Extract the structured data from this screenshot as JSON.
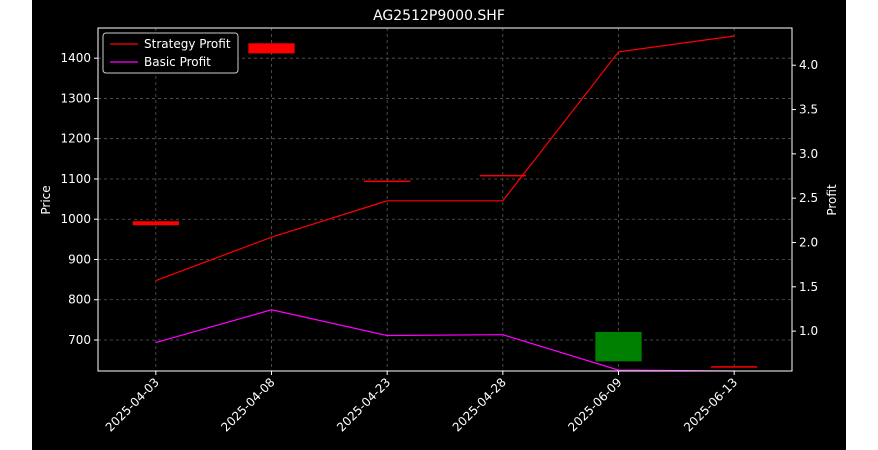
{
  "chart_data": {
    "type": "line",
    "title": "AG2512P9000.SHF",
    "xlabel": "",
    "ylabel_left": "Price",
    "ylabel_right": "Profit",
    "categories": [
      "2025-04-03",
      "2025-04-08",
      "2025-04-23",
      "2025-04-28",
      "2025-06-09",
      "2025-06-13"
    ],
    "y_left": {
      "range": [
        623,
        1475
      ],
      "ticks": [
        700,
        800,
        900,
        1000,
        1100,
        1200,
        1300,
        1400
      ]
    },
    "y_right": {
      "range": [
        0.55,
        4.42
      ],
      "ticks": [
        "1.0",
        "1.5",
        "2.0",
        "2.5",
        "3.0",
        "3.5",
        "4.0"
      ]
    },
    "grid": true,
    "legend_position": "top-left",
    "series": [
      {
        "name": "Strategy Profit",
        "axis": "right",
        "color": "#ff0000",
        "values": [
          1.57,
          2.06,
          2.47,
          2.47,
          4.15,
          4.33
        ]
      },
      {
        "name": "Basic Profit",
        "axis": "right",
        "color": "#ff00ff",
        "values": [
          0.87,
          1.24,
          0.95,
          0.96,
          0.56,
          0.55
        ]
      }
    ],
    "candles": [
      {
        "category": "2025-04-03",
        "open": 995,
        "close": 985,
        "color": "#ff0000"
      },
      {
        "category": "2025-04-08",
        "open": 1437,
        "close": 1412,
        "color": "#ff0000"
      },
      {
        "category": "2025-04-23",
        "open": 1096,
        "close": 1095,
        "color": "#ff0000"
      },
      {
        "category": "2025-04-28",
        "open": 1110,
        "close": 1109,
        "color": "#ff0000"
      },
      {
        "category": "2025-06-09",
        "open": 647,
        "close": 720,
        "color": "#008000"
      },
      {
        "category": "2025-06-13",
        "open": 635,
        "close": 634,
        "color": "#ff0000"
      }
    ],
    "colors": {
      "figure_bg": "#000000",
      "page_bg": "#ffffff",
      "axis": "#ffffff",
      "grid": "#808080"
    }
  }
}
